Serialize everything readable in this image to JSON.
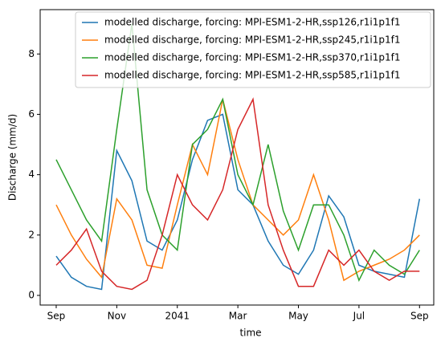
{
  "chart_data": {
    "type": "line",
    "x_label": "time",
    "y_label": "Discharge (mm/d)",
    "x": [
      0,
      0.5,
      1,
      1.5,
      2,
      2.5,
      3,
      3.5,
      4,
      4.5,
      5,
      5.5,
      6,
      6.5,
      7,
      7.5,
      8,
      8.5,
      9,
      9.5,
      10,
      10.5,
      11,
      11.5,
      12
    ],
    "series": [
      {
        "name": "modelled discharge, forcing: MPI-ESM1-2-HR,ssp126,r1i1p1f1",
        "color": "#1f77b4",
        "values": [
          1.3,
          0.6,
          0.3,
          0.2,
          4.8,
          3.8,
          1.8,
          1.5,
          2.5,
          4.5,
          5.8,
          6.0,
          3.5,
          3.0,
          1.8,
          1.0,
          0.7,
          1.5,
          3.3,
          2.6,
          1.0,
          0.8,
          0.7,
          0.6,
          3.2
        ]
      },
      {
        "name": "modelled discharge, forcing: MPI-ESM1-2-HR,ssp245,r1i1p1f1",
        "color": "#ff7f0e",
        "values": [
          3.0,
          2.0,
          1.2,
          0.6,
          3.2,
          2.5,
          1.0,
          0.9,
          3.0,
          5.0,
          4.0,
          6.5,
          4.5,
          3.0,
          2.5,
          2.0,
          2.5,
          4.0,
          2.5,
          0.5,
          0.8,
          1.0,
          1.2,
          1.5,
          2.0
        ]
      },
      {
        "name": "modelled discharge, forcing: MPI-ESM1-2-HR,ssp370,r1i1p1f1",
        "color": "#2ca02c",
        "values": [
          4.5,
          3.5,
          2.5,
          1.8,
          5.5,
          9.0,
          3.5,
          2.0,
          1.5,
          5.0,
          5.5,
          6.5,
          4.0,
          3.0,
          5.0,
          2.8,
          1.5,
          3.0,
          3.0,
          2.0,
          0.5,
          1.5,
          1.0,
          0.7,
          1.5
        ]
      },
      {
        "name": "modelled discharge, forcing: MPI-ESM1-2-HR,ssp585,r1i1p1f1",
        "color": "#d62728",
        "values": [
          1.0,
          1.5,
          2.2,
          0.8,
          0.3,
          0.2,
          0.5,
          2.0,
          4.0,
          3.0,
          2.5,
          3.5,
          5.5,
          6.5,
          3.0,
          1.5,
          0.3,
          0.3,
          1.5,
          1.0,
          1.5,
          0.8,
          0.5,
          0.8,
          0.8
        ]
      }
    ],
    "xlim": [
      -0.53,
      12.47
    ],
    "xticks": [
      {
        "value": 0,
        "label": "Sep"
      },
      {
        "value": 2,
        "label": "Nov"
      },
      {
        "value": 4,
        "label": "2041"
      },
      {
        "value": 6,
        "label": "Mar"
      },
      {
        "value": 8,
        "label": "May"
      },
      {
        "value": 10,
        "label": "Jul"
      },
      {
        "value": 12,
        "label": "Sep"
      }
    ],
    "ylim": [
      -0.32,
      9.47
    ],
    "yticks": [
      0,
      2,
      4,
      6,
      8
    ],
    "grid": false,
    "legend": "upper right"
  }
}
